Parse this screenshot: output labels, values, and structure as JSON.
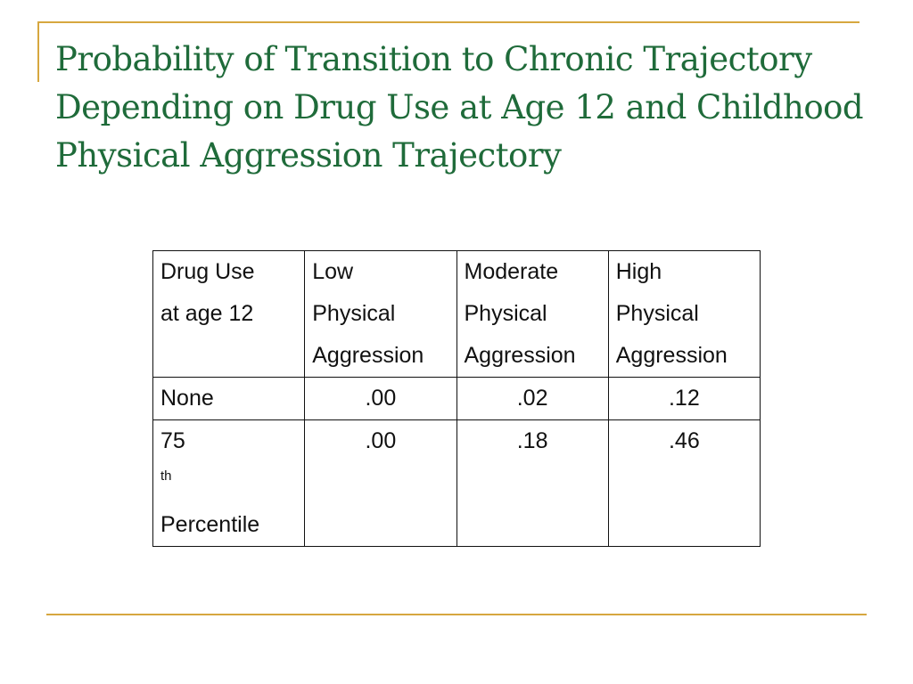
{
  "slide": {
    "title_lines": [
      "Probability of Transition to Chronic Trajectory",
      "Depending on Drug Use at Age 12 and Childhood",
      "Physical Aggression Trajectory"
    ]
  },
  "table": {
    "headers": [
      [
        "Drug Use",
        "at age 12"
      ],
      [
        "Low",
        "Physical",
        "Aggression"
      ],
      [
        "Moderate",
        "Physical",
        "Aggression"
      ],
      [
        "High",
        "Physical",
        "Aggression"
      ]
    ],
    "rows": [
      {
        "label": "None",
        "values": [
          ".00",
          ".02",
          ".12"
        ]
      },
      {
        "label_number": "75",
        "label_superscript": "th",
        "label_second_line": "Percentile",
        "values": [
          ".00",
          ".18",
          ".46"
        ]
      }
    ]
  },
  "colors": {
    "title": "#1f6b3a",
    "rule": "#d6a73f"
  }
}
